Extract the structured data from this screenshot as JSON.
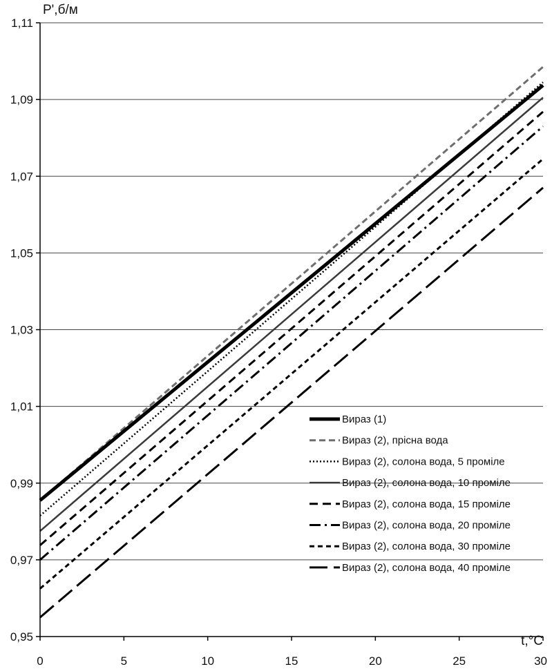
{
  "chart_data": {
    "type": "line",
    "title": "",
    "xlabel": "t,°C",
    "ylabel": "P',б/м",
    "xlim": [
      0,
      30
    ],
    "ylim": [
      0.95,
      1.11
    ],
    "x_ticks": [
      0,
      5,
      10,
      15,
      20,
      25,
      30
    ],
    "x_tick_labels": [
      "0",
      "5",
      "10",
      "15",
      "20",
      "25",
      "30"
    ],
    "y_ticks": [
      0.95,
      0.97,
      0.99,
      1.01,
      1.03,
      1.05,
      1.07,
      1.09,
      1.11
    ],
    "y_tick_labels": [
      "0,95",
      "0,97",
      "0,99",
      "1,01",
      "1,03",
      "1,05",
      "1,07",
      "1,09",
      "1,11"
    ],
    "grid": "horizontal",
    "legend_position": "bottom-right",
    "x": [
      0,
      30
    ],
    "series": [
      {
        "name": "Вираз (1)",
        "values": [
          0.9855,
          1.0937
        ],
        "color": "#000000",
        "style": "solid-thick"
      },
      {
        "name": "Вираз (2), прісна вода",
        "values": [
          0.9855,
          1.0985
        ],
        "color": "#6e6e6e",
        "style": "dash-grey"
      },
      {
        "name": "Вираз (2), солона вода, 5 проміле",
        "values": [
          0.9815,
          1.0945
        ],
        "color": "#000000",
        "style": "dotted"
      },
      {
        "name": "Вираз (2), солона вода, 10 проміле",
        "values": [
          0.9775,
          1.0905
        ],
        "color": "#3a3a3a",
        "style": "solid"
      },
      {
        "name": "Вираз (2), солона вода, 15 проміле",
        "values": [
          0.9738,
          1.0868
        ],
        "color": "#000000",
        "style": "dash"
      },
      {
        "name": "Вираз (2), солона вода, 20 проміле",
        "values": [
          0.97,
          1.083
        ],
        "color": "#000000",
        "style": "dash-dot"
      },
      {
        "name": "Вираз (2), солона вода, 30 проміле",
        "values": [
          0.9625,
          1.0745
        ],
        "color": "#000000",
        "style": "short-dash"
      },
      {
        "name": "Вираз (2), солона вода, 40 проміле",
        "values": [
          0.955,
          1.067
        ],
        "color": "#000000",
        "style": "long-dash"
      }
    ]
  }
}
